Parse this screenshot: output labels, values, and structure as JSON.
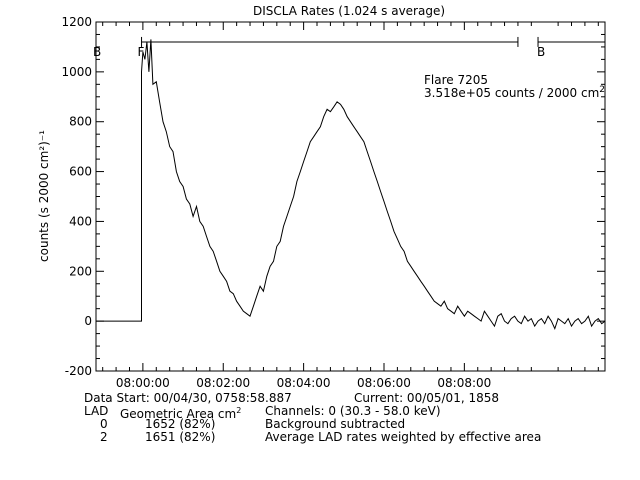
{
  "chart_data": {
    "type": "line",
    "title": "DISCLA Rates (1.024 s average)",
    "xlabel": "",
    "ylabel": "counts (s 2000 cm²)⁻¹",
    "xlim_s": [
      -70,
      690
    ],
    "ylim": [
      -200,
      1200
    ],
    "yticks": [
      -200,
      0,
      200,
      400,
      600,
      800,
      1000,
      1200
    ],
    "xticks": [
      {
        "t": 0,
        "label": "08:00:00"
      },
      {
        "t": 120,
        "label": "08:02:00"
      },
      {
        "t": 240,
        "label": "08:04:00"
      },
      {
        "t": 360,
        "label": "08:06:00"
      },
      {
        "t": 480,
        "label": "08:08:00"
      }
    ],
    "grid": false,
    "series": [
      {
        "name": "",
        "x": [
          -70,
          -2,
          -2,
          0,
          3,
          6,
          9,
          12,
          15,
          20,
          25,
          30,
          35,
          40,
          45,
          50,
          55,
          60,
          65,
          70,
          75,
          80,
          85,
          90,
          95,
          100,
          105,
          110,
          115,
          120,
          125,
          130,
          135,
          140,
          145,
          150,
          155,
          160,
          165,
          170,
          175,
          180,
          185,
          190,
          195,
          200,
          205,
          210,
          215,
          220,
          225,
          230,
          235,
          240,
          245,
          250,
          255,
          260,
          265,
          270,
          275,
          280,
          285,
          290,
          295,
          300,
          305,
          310,
          315,
          320,
          325,
          330,
          335,
          340,
          345,
          350,
          355,
          360,
          365,
          370,
          375,
          380,
          385,
          390,
          395,
          400,
          405,
          410,
          415,
          420,
          425,
          430,
          435,
          440,
          445,
          450,
          455,
          460,
          465,
          470,
          475,
          480,
          485,
          490,
          495,
          500,
          505,
          510,
          515,
          520,
          525,
          530,
          535,
          540,
          545,
          550,
          555,
          560,
          565,
          570,
          575,
          580,
          585,
          590,
          595,
          600,
          605,
          610,
          615,
          620,
          625,
          630,
          635,
          640,
          645,
          650,
          655,
          660,
          665,
          670,
          675,
          680,
          685,
          690
        ],
        "values": [
          0,
          0,
          1000,
          1080,
          1050,
          1120,
          1000,
          1130,
          950,
          960,
          880,
          800,
          760,
          700,
          680,
          600,
          560,
          540,
          490,
          470,
          420,
          460,
          400,
          380,
          340,
          300,
          280,
          240,
          200,
          180,
          160,
          120,
          110,
          80,
          60,
          40,
          30,
          20,
          60,
          100,
          140,
          120,
          180,
          220,
          240,
          300,
          320,
          380,
          420,
          460,
          500,
          560,
          600,
          640,
          680,
          720,
          740,
          760,
          780,
          820,
          850,
          840,
          860,
          880,
          870,
          850,
          820,
          800,
          780,
          760,
          740,
          720,
          680,
          640,
          600,
          560,
          520,
          480,
          440,
          400,
          360,
          330,
          300,
          280,
          240,
          220,
          200,
          180,
          160,
          140,
          120,
          100,
          80,
          70,
          60,
          80,
          50,
          40,
          30,
          60,
          40,
          20,
          40,
          30,
          20,
          10,
          0,
          40,
          20,
          0,
          -20,
          20,
          30,
          0,
          -10,
          10,
          20,
          0,
          -10,
          20,
          0,
          10,
          -20,
          0,
          10,
          -10,
          20,
          0,
          -30,
          10,
          0,
          -10,
          10,
          -20,
          0,
          10,
          -10,
          0,
          20,
          -20,
          0,
          10,
          -10,
          0
        ]
      }
    ]
  },
  "annotations": {
    "flare_name": "Flare 7205",
    "flare_counts": "3.518e+05 counts / 2000 cm",
    "flare_counts_sup": "2",
    "bar_label_left": "B",
    "bar_label_start": "F",
    "bar_label_end": "B",
    "bar_start_s": -2,
    "bar_end_s": 560,
    "bar_end2_s": 590,
    "bar_level": 1120
  },
  "footer": {
    "data_start": "Data Start: 00/04/30, 0758:58.887",
    "current": "Current: 00/05/01, 1858",
    "lad_header": "LAD",
    "geom_header": "Geometric Area cm",
    "geom_header_sup": "2",
    "channels": "Channels:  0 (30.3 - 58.0 keV)",
    "rows": [
      {
        "lad": "0",
        "area": "1652 (82%)",
        "note": "Background subtracted"
      },
      {
        "lad": "2",
        "area": "1651 (82%)",
        "note": "Average LAD rates weighted by effective area"
      }
    ]
  }
}
